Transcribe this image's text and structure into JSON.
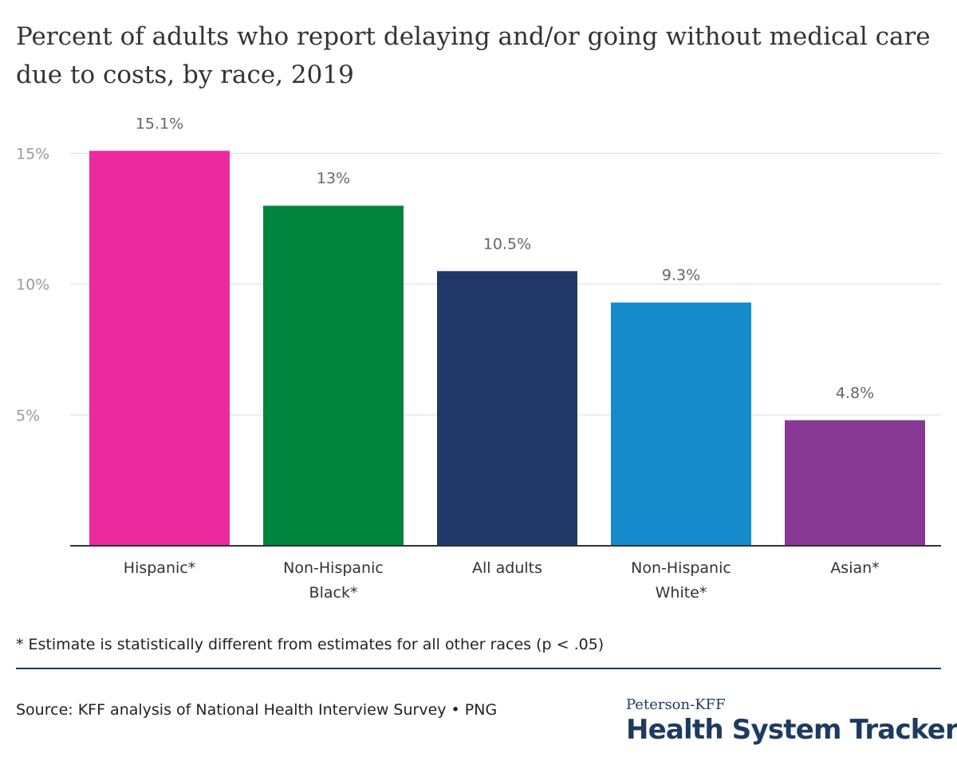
{
  "title": "Percent of adults who report delaying and/or going without medical care due to costs, by race, 2019",
  "footnote": "* Estimate is statistically different from estimates for all other races (p < .05)",
  "source": "Source: KFF analysis of National Health Interview Survey • PNG",
  "branding": {
    "line1": "Peterson-KFF",
    "line2": "Health System Tracker"
  },
  "chart_data": {
    "type": "bar",
    "title": "Percent of adults who report delaying and/or going without medical care due to costs, by race, 2019",
    "xlabel": "",
    "ylabel": "",
    "ylim": [
      0,
      15.9
    ],
    "grid": true,
    "yticks": [
      {
        "value": 5,
        "label": "5%"
      },
      {
        "value": 10,
        "label": "10%"
      },
      {
        "value": 15,
        "label": "15%"
      }
    ],
    "categories": [
      [
        "Hispanic*"
      ],
      [
        "Non-Hispanic",
        "Black*"
      ],
      [
        "All adults"
      ],
      [
        "Non-Hispanic",
        "White*"
      ],
      [
        "Asian*"
      ]
    ],
    "values": [
      15.1,
      13,
      10.5,
      9.3,
      4.8
    ],
    "data_labels": [
      "15.1%",
      "13%",
      "10.5%",
      "9.3%",
      "4.8%"
    ],
    "colors": [
      "#ec2a9e",
      "#00853e",
      "#203767",
      "#168bcc",
      "#873993"
    ]
  }
}
